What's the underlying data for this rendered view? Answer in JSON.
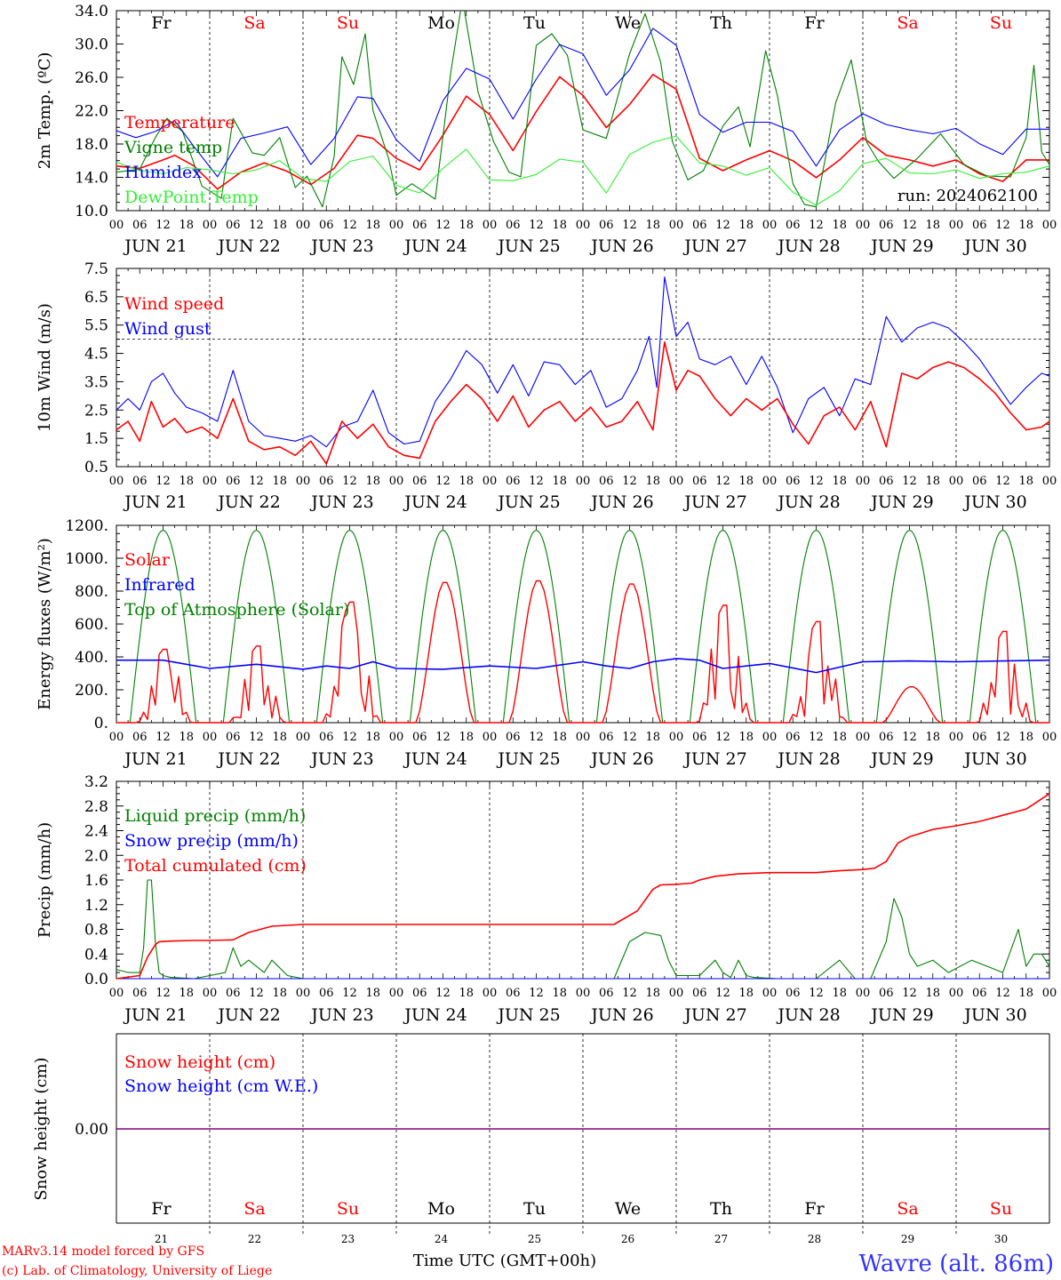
{
  "footer": {
    "credit_line1": "MARv3.14 model forced by GFS",
    "credit_line2": "(c) Lab. of Climatology, University of Liege",
    "xlabel": "Time UTC (GMT+00h)",
    "location": "Wavre (alt. 86m)"
  },
  "days": {
    "names": [
      "Fr",
      "Sa",
      "Su",
      "Mo",
      "Tu",
      "We",
      "Th",
      "Fr",
      "Sa",
      "Su"
    ],
    "weekend": [
      false,
      true,
      true,
      false,
      false,
      false,
      false,
      false,
      true,
      true
    ],
    "dates": [
      "JUN 21",
      "JUN 22",
      "JUN 23",
      "JUN 24",
      "JUN 25",
      "JUN 26",
      "JUN 27",
      "JUN 28",
      "JUN 29",
      "JUN 30"
    ],
    "numbers": [
      "21",
      "22",
      "23",
      "24",
      "25",
      "26",
      "27",
      "28",
      "29",
      "30"
    ],
    "hour_ticks": [
      "00",
      "06",
      "12",
      "18"
    ],
    "final_tick": "00"
  },
  "colors": {
    "red": "#ff0000",
    "green": "#008000",
    "blue": "#0000ff",
    "lightgreen": "#33ee33",
    "purple": "#800080",
    "weekend": "#ff0000",
    "location": "#3333ff"
  },
  "chart_data": [
    {
      "type": "line",
      "ylabel": "2m Temp. (ºC)",
      "ylim": [
        10,
        36
      ],
      "yticks": [
        "10.0",
        "14.0",
        "18.0",
        "22.0",
        "26.0",
        "30.0",
        "34.0"
      ],
      "annotation": "run: 2024062100",
      "x_unit": "hours since 2024-06-21 00 UTC",
      "series": [
        {
          "name": "Temperature",
          "color": "red",
          "x": [
            0,
            6,
            12,
            15,
            20,
            26,
            32,
            38,
            44,
            50,
            56,
            62,
            66,
            72,
            78,
            84,
            90,
            96,
            102,
            108,
            114,
            120,
            126,
            132,
            138,
            144,
            150,
            156,
            162,
            168,
            174,
            180,
            186,
            192,
            198,
            204,
            210,
            216,
            222,
            228,
            234,
            240
          ],
          "y": [
            15.8,
            15.5,
            16.6,
            17.2,
            15.8,
            12.8,
            15.0,
            16.2,
            15.1,
            13.4,
            15.5,
            19.8,
            19.4,
            16.8,
            15.3,
            19.8,
            24.9,
            22.5,
            17.8,
            22.9,
            27.4,
            25.0,
            20.8,
            23.8,
            27.7,
            25.8,
            16.8,
            15.2,
            16.6,
            17.8,
            16.5,
            14.3,
            16.6,
            19.5,
            17.2,
            16.6,
            15.8,
            16.6,
            14.8,
            13.8,
            16.6,
            16.6
          ]
        },
        {
          "name": "Vigne temp",
          "color": "green",
          "x": [
            0,
            6,
            10,
            13,
            17,
            22,
            27,
            30,
            35,
            38,
            42,
            46,
            49,
            53,
            56,
            58,
            61,
            64,
            66,
            70,
            72,
            76,
            82,
            86,
            89,
            93,
            97,
            101,
            104,
            108,
            112,
            116,
            120,
            126,
            132,
            136,
            140,
            143,
            147,
            151,
            156,
            160,
            163,
            167,
            170,
            174,
            177,
            180,
            185,
            189,
            193,
            196,
            200,
            206,
            212,
            218,
            224,
            230,
            234,
            236,
            238,
            240
          ],
          "y": [
            15.0,
            15.4,
            19.5,
            22.0,
            20.3,
            13.2,
            11.6,
            22.0,
            17.5,
            17.2,
            19.5,
            13.0,
            14.5,
            10.5,
            17.0,
            30.0,
            26.4,
            33.0,
            23.0,
            16.8,
            12.0,
            13.5,
            11.5,
            28.0,
            37.5,
            25.5,
            19.0,
            15.0,
            14.4,
            31.5,
            33.0,
            30.2,
            20.5,
            19.4,
            30.4,
            35.6,
            29.3,
            19.0,
            14.0,
            15.2,
            21.0,
            23.5,
            18.3,
            30.8,
            25.0,
            13.5,
            10.8,
            10.5,
            24.0,
            29.6,
            18.9,
            16.4,
            14.2,
            16.8,
            20.0,
            16.0,
            14.5,
            14.4,
            19.5,
            28.9,
            17.6,
            16.0
          ]
        },
        {
          "name": "Humidex",
          "color": "blue",
          "x": [
            0,
            5,
            10,
            15,
            20,
            26,
            32,
            38,
            44,
            50,
            56,
            62,
            66,
            72,
            78,
            84,
            90,
            96,
            102,
            108,
            114,
            120,
            126,
            132,
            138,
            144,
            150,
            156,
            162,
            168,
            174,
            180,
            186,
            192,
            198,
            204,
            210,
            216,
            222,
            228,
            234,
            240
          ],
          "y": [
            20.4,
            19.5,
            20.3,
            21.7,
            18.3,
            14.4,
            19.4,
            20.1,
            20.9,
            16.0,
            19.4,
            24.8,
            24.6,
            19.2,
            16.4,
            24.3,
            28.5,
            27.1,
            21.9,
            27.1,
            31.6,
            30.4,
            25.0,
            28.3,
            33.7,
            31.5,
            22.5,
            20.2,
            21.5,
            21.5,
            20.3,
            15.8,
            20.5,
            22.6,
            21.2,
            20.5,
            20.0,
            20.7,
            18.7,
            17.3,
            20.6,
            20.6
          ]
        },
        {
          "name": "DewPoint Temp",
          "color": "lightgreen",
          "x": [
            0,
            6,
            12,
            18,
            24,
            30,
            36,
            42,
            48,
            54,
            60,
            66,
            72,
            78,
            84,
            90,
            96,
            102,
            108,
            114,
            120,
            126,
            132,
            138,
            144,
            150,
            156,
            162,
            168,
            174,
            180,
            186,
            192,
            198,
            204,
            210,
            216,
            222,
            228,
            234,
            240
          ],
          "y": [
            16.3,
            15.2,
            14.8,
            15.6,
            15.3,
            14.8,
            15.3,
            16.5,
            14.2,
            13.8,
            16.4,
            17.1,
            13.3,
            12.3,
            15.5,
            18.0,
            14.0,
            13.9,
            14.7,
            16.7,
            16.3,
            12.3,
            17.3,
            18.9,
            19.7,
            16.2,
            15.8,
            14.6,
            15.6,
            12.4,
            10.7,
            12.6,
            16.1,
            16.8,
            14.9,
            14.8,
            15.3,
            14.2,
            14.8,
            15.0,
            15.8
          ]
        }
      ]
    },
    {
      "type": "line",
      "ylabel": "10m Wind (m/s)",
      "ylim": [
        0.5,
        7.5
      ],
      "yticks": [
        "0.5",
        "1.5",
        "2.5",
        "3.5",
        "4.5",
        "5.5",
        "6.5",
        "7.5"
      ],
      "reference_line": 5.0,
      "x_unit": "hours since 2024-06-21 00 UTC",
      "series": [
        {
          "name": "Wind speed",
          "color": "red",
          "x": [
            0,
            3,
            6,
            9,
            12,
            15,
            18,
            22,
            26,
            30,
            34,
            38,
            42,
            46,
            50,
            54,
            58,
            62,
            66,
            70,
            74,
            78,
            82,
            86,
            90,
            94,
            98,
            102,
            106,
            110,
            114,
            118,
            122,
            126,
            130,
            134,
            138,
            141,
            144,
            147,
            150,
            154,
            158,
            162,
            166,
            170,
            174,
            178,
            182,
            186,
            190,
            194,
            198,
            202,
            206,
            210,
            214,
            218,
            222,
            226,
            230,
            234,
            238,
            240
          ],
          "y": [
            1.8,
            2.1,
            1.4,
            2.8,
            1.9,
            2.2,
            1.7,
            1.9,
            1.5,
            2.9,
            1.4,
            1.1,
            1.2,
            0.9,
            1.4,
            0.6,
            2.1,
            1.5,
            2.0,
            1.2,
            0.9,
            0.8,
            2.1,
            2.8,
            3.4,
            2.9,
            2.1,
            3.0,
            1.9,
            2.5,
            2.8,
            2.1,
            2.6,
            1.9,
            2.1,
            2.8,
            1.8,
            4.9,
            3.2,
            3.9,
            3.7,
            2.9,
            2.3,
            2.9,
            2.5,
            2.9,
            2.0,
            1.3,
            2.3,
            2.6,
            1.8,
            2.8,
            1.2,
            3.8,
            3.6,
            4.0,
            4.2,
            4.0,
            3.6,
            3.1,
            2.4,
            1.8,
            1.9,
            2.1
          ]
        },
        {
          "name": "Wind gust",
          "color": "blue",
          "x": [
            0,
            3,
            6,
            9,
            12,
            15,
            18,
            22,
            26,
            30,
            34,
            38,
            42,
            46,
            50,
            54,
            58,
            62,
            66,
            70,
            74,
            78,
            82,
            86,
            90,
            94,
            98,
            102,
            106,
            110,
            114,
            118,
            122,
            126,
            130,
            134,
            137,
            139,
            141,
            144,
            147,
            150,
            154,
            158,
            162,
            166,
            170,
            174,
            178,
            182,
            186,
            190,
            194,
            198,
            202,
            206,
            210,
            214,
            218,
            222,
            226,
            230,
            234,
            238,
            240
          ],
          "y": [
            2.5,
            2.9,
            2.5,
            3.5,
            3.8,
            3.1,
            2.6,
            2.4,
            2.1,
            3.9,
            2.1,
            1.6,
            1.5,
            1.4,
            1.6,
            1.2,
            1.9,
            2.1,
            3.2,
            1.7,
            1.3,
            1.4,
            2.8,
            3.6,
            4.6,
            4.1,
            3.1,
            4.1,
            3.0,
            4.2,
            4.1,
            3.4,
            3.9,
            2.6,
            2.9,
            3.9,
            5.1,
            3.3,
            7.2,
            5.1,
            5.6,
            4.3,
            4.1,
            4.4,
            3.4,
            4.4,
            3.3,
            1.7,
            2.9,
            3.3,
            2.3,
            3.6,
            3.4,
            5.8,
            4.9,
            5.4,
            5.6,
            5.4,
            4.9,
            4.3,
            3.5,
            2.7,
            3.3,
            3.8,
            3.7
          ]
        }
      ]
    },
    {
      "type": "line",
      "ylabel": "Energy fluxes (W/m²)",
      "ylim": [
        0,
        1200
      ],
      "yticks": [
        "0.",
        "200.",
        "400.",
        "600.",
        "800.",
        "1000.",
        "1200."
      ],
      "x_unit": "hours since 2024-06-21 00 UTC",
      "series": [
        {
          "name": "Solar",
          "color": "red",
          "peaks": [
            450,
            470,
            740,
            860,
            870,
            850,
            720,
            620,
            220,
            560
          ],
          "midday_hour": 12
        },
        {
          "name": "Infrared",
          "color": "blue",
          "x": [
            0,
            12,
            24,
            36,
            48,
            54,
            60,
            66,
            72,
            84,
            96,
            108,
            120,
            126,
            132,
            138,
            144,
            150,
            156,
            168,
            180,
            192,
            204,
            216,
            228,
            240
          ],
          "y": [
            380,
            380,
            330,
            355,
            325,
            345,
            330,
            370,
            330,
            325,
            345,
            330,
            370,
            345,
            330,
            370,
            390,
            380,
            330,
            360,
            305,
            370,
            375,
            370,
            375,
            380
          ]
        },
        {
          "name": "Top of Atmosphere (Solar)",
          "color": "green",
          "peak": 1170,
          "sunrise_hour": 3.5,
          "sunset_hour": 20.5
        }
      ]
    },
    {
      "type": "line",
      "ylabel": "Precip (mm/h)",
      "ylim": [
        0,
        3.2
      ],
      "yticks": [
        "0.0",
        "0.4",
        "0.8",
        "1.2",
        "1.6",
        "2.0",
        "2.4",
        "2.8",
        "3.2"
      ],
      "x_unit": "hours since 2024-06-21 00 UTC",
      "series": [
        {
          "name": "Liquid precip (mm/h)",
          "color": "green",
          "x": [
            0,
            3,
            6,
            7,
            8,
            9,
            10,
            11,
            12,
            14,
            20,
            28,
            30,
            32,
            34,
            36,
            38,
            40,
            44,
            48,
            128,
            132,
            136,
            140,
            142,
            144,
            150,
            154,
            156,
            158,
            160,
            162,
            164,
            170,
            180,
            186,
            190,
            194,
            198,
            200,
            202,
            204,
            206,
            210,
            214,
            220,
            224,
            228,
            232,
            234,
            236,
            238,
            240
          ],
          "y": [
            0.15,
            0.1,
            0.1,
            0.5,
            1.6,
            1.6,
            0.6,
            0.1,
            0.05,
            0.02,
            0.0,
            0.1,
            0.5,
            0.2,
            0.3,
            0.2,
            0.1,
            0.3,
            0.05,
            0.0,
            0.0,
            0.6,
            0.75,
            0.7,
            0.3,
            0.05,
            0.05,
            0.3,
            0.1,
            0.02,
            0.3,
            0.05,
            0.02,
            0.0,
            0.0,
            0.3,
            0.0,
            0.0,
            0.6,
            1.3,
            1.0,
            0.4,
            0.2,
            0.3,
            0.1,
            0.3,
            0.2,
            0.1,
            0.8,
            0.2,
            0.4,
            0.4,
            0.2
          ]
        },
        {
          "name": "Snow precip (mm/h)",
          "color": "blue",
          "x": [
            0,
            240
          ],
          "y": [
            0,
            0
          ]
        },
        {
          "name": "Total cumulated (cm)",
          "color": "red",
          "x": [
            0,
            6,
            8,
            10,
            11,
            14,
            20,
            24,
            30,
            34,
            40,
            48,
            60,
            96,
            120,
            128,
            134,
            138,
            140,
            144,
            148,
            150,
            154,
            160,
            168,
            180,
            186,
            192,
            195,
            198,
            201,
            204,
            210,
            216,
            222,
            228,
            234,
            240
          ],
          "y": [
            0.0,
            0.05,
            0.35,
            0.55,
            0.6,
            0.61,
            0.62,
            0.62,
            0.63,
            0.75,
            0.85,
            0.88,
            0.88,
            0.88,
            0.88,
            0.88,
            1.1,
            1.45,
            1.52,
            1.53,
            1.55,
            1.6,
            1.66,
            1.7,
            1.72,
            1.72,
            1.75,
            1.77,
            1.79,
            1.9,
            2.2,
            2.3,
            2.42,
            2.48,
            2.55,
            2.65,
            2.75,
            3.0
          ]
        }
      ]
    },
    {
      "type": "line",
      "ylabel": "Snow height (cm)",
      "yticks": [
        "0.00"
      ],
      "x_unit": "hours since 2024-06-21 00 UTC",
      "series": [
        {
          "name": "Snow height (cm)",
          "color": "red",
          "x": [
            0,
            240
          ],
          "y": [
            0,
            0
          ]
        },
        {
          "name": "Snow height (cm W.E.)",
          "color": "blue",
          "x": [
            0,
            240
          ],
          "y": [
            0,
            0
          ]
        }
      ]
    }
  ]
}
